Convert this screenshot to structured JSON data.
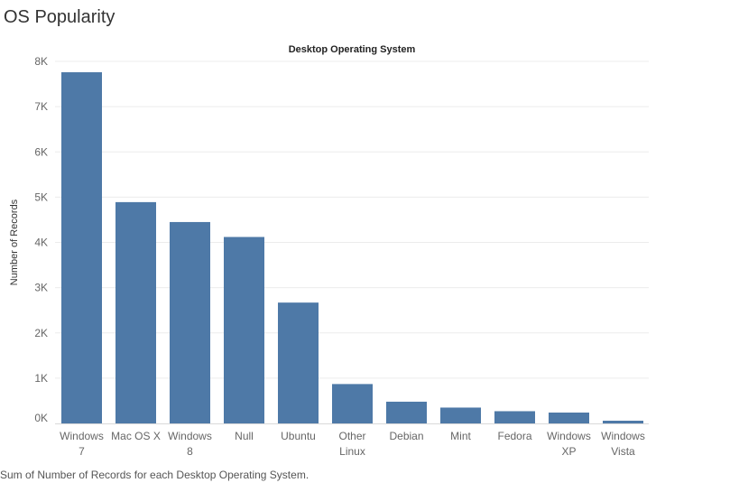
{
  "sheet": {
    "title": "OS Popularity",
    "caption": "Sum of Number of Records for each Desktop Operating System."
  },
  "colors": {
    "bar": "#4e79a7",
    "gridline": "#ececec",
    "axis": "#d9d9d9"
  },
  "chart_data": {
    "type": "bar",
    "title": "Desktop Operating System",
    "xlabel": "",
    "ylabel": "Number of Records",
    "categories": [
      [
        "Windows",
        "7"
      ],
      [
        "Mac OS X"
      ],
      [
        "Windows",
        "8"
      ],
      [
        "Null"
      ],
      [
        "Ubuntu"
      ],
      [
        "Other",
        "Linux"
      ],
      [
        "Debian"
      ],
      [
        "Mint"
      ],
      [
        "Fedora"
      ],
      [
        "Windows",
        "XP"
      ],
      [
        "Windows",
        "Vista"
      ]
    ],
    "values": [
      7760,
      4890,
      4450,
      4120,
      2670,
      870,
      480,
      350,
      270,
      240,
      60
    ],
    "ylim": [
      0,
      8000
    ],
    "yticks": [
      0,
      1000,
      2000,
      3000,
      4000,
      5000,
      6000,
      7000,
      8000
    ],
    "ytick_labels": [
      "0K",
      "1K",
      "2K",
      "3K",
      "4K",
      "5K",
      "6K",
      "7K",
      "8K"
    ],
    "grid": true,
    "legend": "none"
  }
}
